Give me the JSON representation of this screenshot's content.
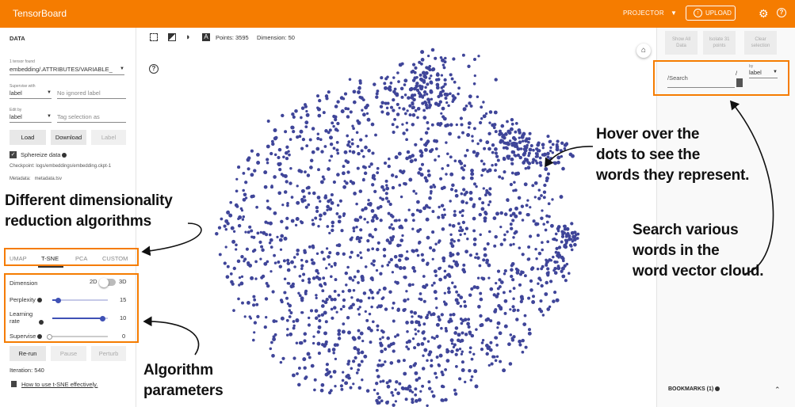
{
  "topbar": {
    "title": "TensorBoard",
    "mode": "PROJECTOR",
    "upload": "UPLOAD"
  },
  "left": {
    "section": "DATA",
    "tensor_found": "1 tensor found",
    "tensor_value": "embedding/.ATTRIBUTES/VARIABLE_",
    "supervise_label": "Supervise with",
    "supervise_value": "label",
    "ignored_placeholder": "No ignored label",
    "edit_label": "Edit by",
    "edit_value": "label",
    "tag_placeholder": "Tag selection as",
    "load": "Load",
    "download": "Download",
    "label_btn": "Label",
    "sphereize": "Sphereize data",
    "checkpoint": "Checkpoint: logs/embeddings/embedding.ckpt-1",
    "metadata": "Metadata:   metadata.tsv",
    "tabs": [
      "UMAP",
      "T-SNE",
      "PCA",
      "CUSTOM"
    ],
    "dimension": "Dimension",
    "dim2": "2D",
    "dim3": "3D",
    "perplexity": "Perplexity",
    "perplexity_value": "15",
    "perplexity_frac": 0.1,
    "lr_line1": "Learning",
    "lr_line2": "rate",
    "lr_value": "10",
    "lr_frac": 0.9,
    "supervise": "Supervise",
    "supervise_value_num": "0",
    "supervise_frac": 0.0,
    "rerun": "Re-run",
    "pause": "Pause",
    "perturb": "Perturb",
    "iteration": "Iteration: 540",
    "howto": "How to use t-SNE effectively."
  },
  "toolbar": {
    "points": "Points: 3595",
    "dimension": "Dimension: 50"
  },
  "right": {
    "show_all": [
      "Show All",
      "Data"
    ],
    "isolate": [
      "Isolate 31",
      "points"
    ],
    "clear": [
      "Clear",
      "selection"
    ],
    "search_placeholder": "/Search",
    "regex": "/",
    "by": "by",
    "by_value": "label",
    "bookmarks": "BOOKMARKS (1)"
  },
  "annotations": {
    "algorithms": [
      "Different dimensionality",
      "reduction algorithms"
    ],
    "params": [
      "Algorithm",
      "parameters"
    ],
    "hover": [
      "Hover over the",
      "dots to see the",
      "words they represent."
    ],
    "search": [
      "Search various",
      "words in the",
      "word vector cloud."
    ]
  },
  "colors": {
    "accent": "#f57c00",
    "dot": "#3f4599",
    "indigo": "#3f51b5"
  }
}
